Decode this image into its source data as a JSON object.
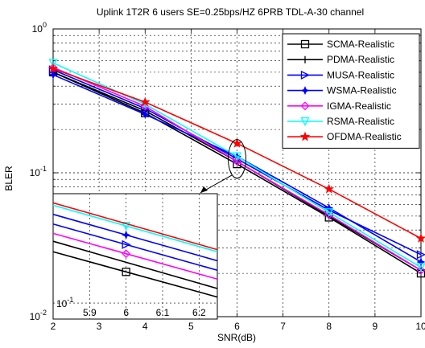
{
  "chart_data": {
    "type": "line",
    "title": "Uplink 1T2R  6 users SE=0.25bps/HZ 6PRB TDL-A-30  channel",
    "xlabel": "SNR(dB)",
    "ylabel": "BLER",
    "xlim": [
      2,
      10
    ],
    "ylim": [
      0.01,
      1
    ],
    "yscale": "log",
    "grid": true,
    "legend_position": "top-right",
    "x_ticks": [
      "2",
      "3",
      "4",
      "5",
      "6",
      "7",
      "8",
      "9",
      "10"
    ],
    "y_ticks": [
      {
        "base": "10",
        "exp": "-2",
        "value": 0.01
      },
      {
        "base": "10",
        "exp": "-1",
        "value": 0.1
      },
      {
        "base": "10",
        "exp": "0",
        "value": 1
      }
    ],
    "x": [
      2,
      4,
      6,
      8,
      10
    ],
    "series": [
      {
        "name": "SCMA-Realistic",
        "color": "#000000",
        "marker": "square",
        "values": [
          0.5,
          0.26,
          0.115,
          0.049,
          0.02
        ]
      },
      {
        "name": "PDMA-Realistic",
        "color": "#000000",
        "marker": "plus",
        "values": [
          0.5,
          0.27,
          0.12,
          0.05,
          0.021
        ]
      },
      {
        "name": "MUSA-Realistic",
        "color": "#0000ff",
        "marker": "triangle-right",
        "values": [
          0.52,
          0.28,
          0.125,
          0.055,
          0.027
        ]
      },
      {
        "name": "WSMA-Realistic",
        "color": "#0000ff",
        "marker": "star4",
        "values": [
          0.48,
          0.255,
          0.13,
          0.057,
          0.024
        ]
      },
      {
        "name": "IGMA-Realistic",
        "color": "#ff00ff",
        "marker": "diamond",
        "values": [
          0.54,
          0.29,
          0.12,
          0.051,
          0.021
        ]
      },
      {
        "name": "RSMA-Realistic",
        "color": "#00ffff",
        "marker": "triangle-down",
        "values": [
          0.58,
          0.3,
          0.13,
          0.053,
          0.022
        ]
      },
      {
        "name": "OFDMA-Realistic",
        "color": "#ff0000",
        "marker": "star",
        "values": [
          0.53,
          0.31,
          0.16,
          0.077,
          0.035
        ]
      }
    ],
    "inset": {
      "xlim": [
        5.8,
        6.25
      ],
      "x_ticks": [
        "5.9",
        "6",
        "6.1",
        "6.2"
      ],
      "y_label": {
        "base": "10",
        "exp": "-1"
      },
      "series": [
        {
          "name": "SCMA-Realistic",
          "values_at_5_8": 0.14,
          "values_at_6_25": 0.104,
          "marker_at": 6
        },
        {
          "name": "PDMA-Realistic",
          "values_at_5_8": 0.15,
          "values_at_6_25": 0.11
        },
        {
          "name": "IGMA-Realistic",
          "values_at_5_8": 0.158,
          "values_at_6_25": 0.117,
          "marker_at": 6
        },
        {
          "name": "MUSA-Realistic",
          "values_at_5_8": 0.168,
          "values_at_6_25": 0.124,
          "marker_at": 6
        },
        {
          "name": "WSMA-Realistic",
          "values_at_5_8": 0.179,
          "values_at_6_25": 0.132,
          "marker_at": 6
        },
        {
          "name": "RSMA-Realistic",
          "values_at_5_8": 0.19,
          "values_at_6_25": 0.14,
          "marker_at": 6
        },
        {
          "name": "OFDMA-Realistic",
          "values_at_5_8": 0.193,
          "values_at_6_25": 0.142
        }
      ]
    }
  }
}
